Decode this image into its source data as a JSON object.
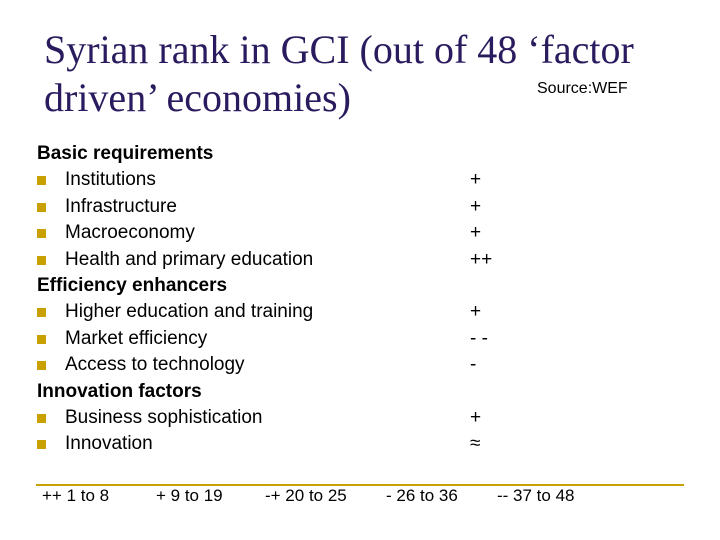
{
  "title": "Syrian rank in GCI (out of 48 ‘factor driven’ economies)",
  "source": "Source:WEF",
  "colors": {
    "title": "#2a1a5e",
    "accent": "#c8a000"
  },
  "rows": [
    {
      "type": "group",
      "label": "Basic requirements",
      "rating": ""
    },
    {
      "type": "item",
      "label": "Institutions",
      "rating": "+"
    },
    {
      "type": "item",
      "label": "Infrastructure",
      "rating": "+"
    },
    {
      "type": "item",
      "label": "Macroeconomy",
      "rating": "+"
    },
    {
      "type": "item",
      "label": "Health and primary education",
      "rating": "++"
    },
    {
      "type": "group",
      "label": "Efficiency enhancers",
      "rating": ""
    },
    {
      "type": "item",
      "label": "Higher education and training",
      "rating": "+"
    },
    {
      "type": "item",
      "label": "Market efficiency",
      "rating": "- -"
    },
    {
      "type": "item",
      "label": "Access to technology",
      "rating": "-"
    },
    {
      "type": "group",
      "label": "Innovation factors",
      "rating": ""
    },
    {
      "type": "item",
      "label": "Business sophistication",
      "rating": "+"
    },
    {
      "type": "item",
      "label": "Innovation",
      "rating": "≈"
    }
  ],
  "legend": [
    {
      "text": "++  1 to 8"
    },
    {
      "text": "+  9 to 19"
    },
    {
      "text": "-+  20 to 25"
    },
    {
      "text": "- 26 to 36"
    },
    {
      "text": "-- 37 to 48"
    }
  ]
}
